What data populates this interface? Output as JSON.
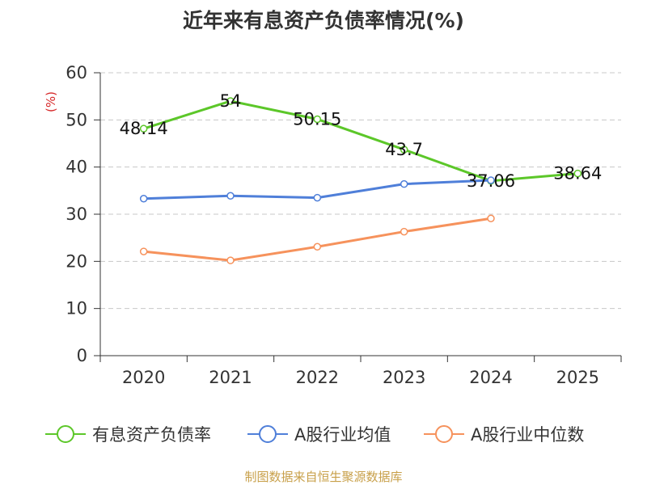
{
  "chart_data": {
    "type": "line",
    "title": "近年来有息资产负债率情况(%)",
    "unit_label": "(%)",
    "categories": [
      "2020",
      "2021",
      "2022",
      "2023",
      "2024",
      "2025"
    ],
    "ylim": [
      0,
      60
    ],
    "yticks": [
      0,
      10,
      20,
      30,
      40,
      50,
      60
    ],
    "grid": true,
    "legend_position": "bottom",
    "series": [
      {
        "name": "有息资产负债率",
        "color": "#5cc729",
        "values": [
          48.14,
          54,
          50.15,
          43.7,
          37.06,
          38.64
        ],
        "labels": [
          "48.14",
          "54",
          "50.15",
          "43.7",
          "37.06",
          "38.64"
        ]
      },
      {
        "name": "A股行业均值",
        "color": "#4f7fd9",
        "values": [
          33.3,
          33.9,
          33.5,
          36.4,
          37.2,
          null
        ]
      },
      {
        "name": "A股行业中位数",
        "color": "#f6925c",
        "values": [
          22.1,
          20.2,
          23.1,
          26.3,
          29.1,
          null
        ]
      }
    ]
  },
  "source": "制图数据来自恒生聚源数据库"
}
